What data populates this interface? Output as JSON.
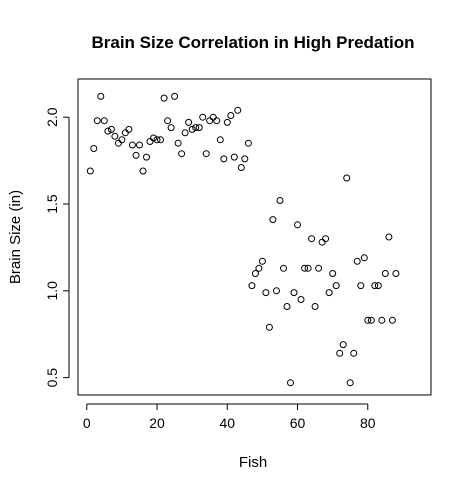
{
  "chart_data": {
    "type": "scatter",
    "title": "Brain Size Correlation in High Predation",
    "xlabel": "Fish",
    "ylabel": "Brain Size (in)",
    "xlim": [
      -2.5,
      98
    ],
    "ylim": [
      0.4,
      2.22
    ],
    "xticks": [
      0,
      20,
      40,
      60,
      80
    ],
    "yticks": [
      0.5,
      1.0,
      1.5,
      2.0
    ],
    "ytick_labels": [
      "0.5",
      "1.0",
      "1.5",
      "2.0"
    ],
    "grid": false,
    "marker": "open-circle",
    "x": [
      1,
      2,
      3,
      4,
      5,
      6,
      7,
      8,
      9,
      10,
      11,
      12,
      13,
      14,
      15,
      16,
      17,
      18,
      19,
      20,
      21,
      22,
      23,
      24,
      25,
      26,
      27,
      28,
      29,
      30,
      31,
      32,
      33,
      34,
      35,
      36,
      37,
      38,
      39,
      40,
      41,
      42,
      43,
      44,
      45,
      46,
      47,
      48,
      49,
      50,
      51,
      52,
      53,
      54,
      55,
      56,
      57,
      58,
      59,
      60,
      61,
      62,
      63,
      64,
      65,
      66,
      67,
      68,
      69,
      70,
      71,
      72,
      73,
      74,
      75,
      76,
      77,
      78,
      79,
      80,
      81,
      82,
      83,
      84,
      85,
      86,
      87,
      88
    ],
    "y": [
      1.69,
      1.82,
      1.98,
      2.12,
      1.98,
      1.92,
      1.93,
      1.89,
      1.85,
      1.87,
      1.91,
      1.93,
      1.84,
      1.78,
      1.84,
      1.69,
      1.77,
      1.86,
      1.88,
      1.87,
      1.87,
      2.11,
      1.98,
      1.94,
      2.12,
      1.85,
      1.79,
      1.91,
      1.97,
      1.93,
      1.94,
      1.94,
      2.0,
      1.79,
      1.98,
      2.0,
      1.98,
      1.87,
      1.76,
      1.97,
      2.01,
      1.77,
      2.04,
      1.71,
      1.76,
      1.85,
      1.03,
      1.1,
      1.13,
      1.17,
      0.99,
      0.79,
      1.41,
      1.0,
      1.52,
      1.13,
      0.91,
      0.47,
      0.99,
      1.38,
      0.95,
      1.13,
      1.13,
      1.3,
      0.91,
      1.13,
      1.28,
      1.3,
      0.99,
      1.1,
      1.03,
      0.64,
      0.69,
      1.65,
      0.47,
      0.64,
      1.17,
      1.03,
      1.19,
      0.83,
      0.83,
      1.03,
      1.03,
      0.83,
      1.1,
      1.31,
      0.83,
      1.1
    ]
  }
}
